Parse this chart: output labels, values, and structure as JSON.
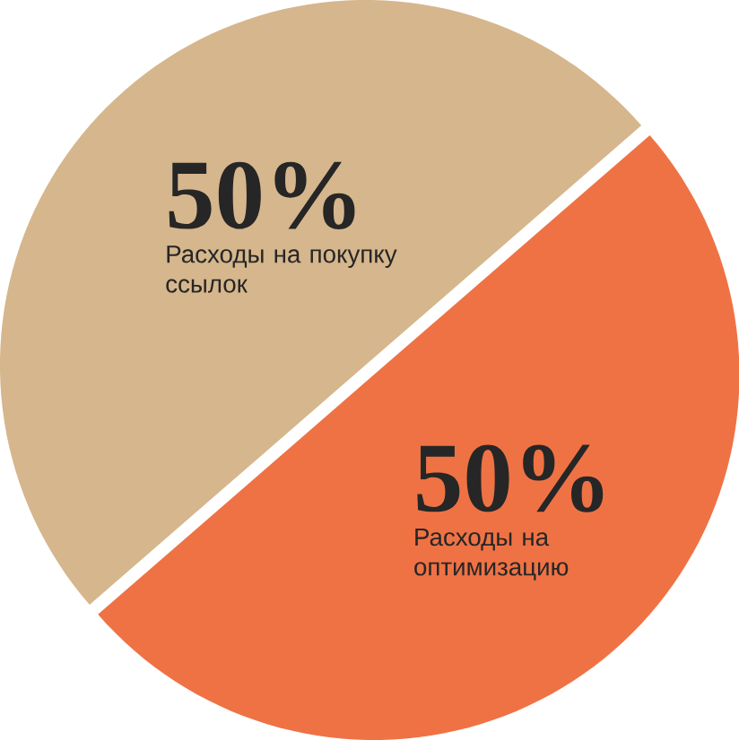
{
  "chart_data": {
    "type": "pie",
    "categories": [
      "Расходы на покупку ссылок",
      "Расходы на оптимизацию"
    ],
    "values": [
      50,
      50
    ],
    "colors": [
      "#d6b68c",
      "#ef7245"
    ],
    "value_labels": [
      "50%",
      "50%"
    ]
  }
}
